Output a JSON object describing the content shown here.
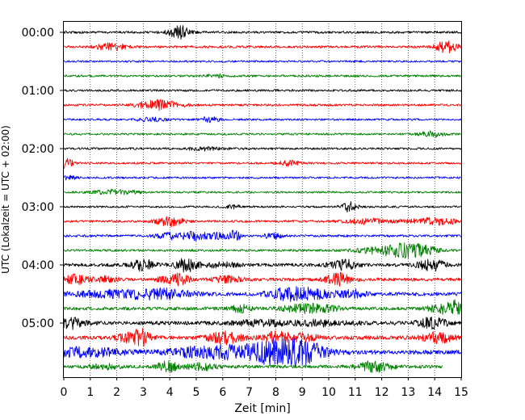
{
  "chart_data": {
    "type": "line",
    "title": "",
    "xlabel": "Zeit  [min]",
    "ylabel": "UTC (Lokalzeit = UTC + 02:00)",
    "xlim": [
      0,
      15
    ],
    "x_ticks": [
      "0",
      "1",
      "2",
      "3",
      "4",
      "5",
      "6",
      "7",
      "8",
      "9",
      "10",
      "11",
      "12",
      "13",
      "14",
      "15"
    ],
    "y_ticks": [
      "00:00",
      "01:00",
      "02:00",
      "03:00",
      "04:00",
      "05:00"
    ],
    "grid": "vertical dotted at each minute",
    "trace_colors": [
      "#000000",
      "#ff0000",
      "#0000ff",
      "#008000"
    ],
    "trace_minutes": 15,
    "traces": [
      {
        "start": "00:00",
        "color": "#000000",
        "base_amplitude": 1.4,
        "events": [
          [
            4.35,
            8,
            0.4
          ]
        ]
      },
      {
        "start": "00:15",
        "color": "#ff0000",
        "base_amplitude": 1.4,
        "events": [
          [
            1.8,
            4,
            0.6
          ],
          [
            14.45,
            7,
            0.4
          ]
        ]
      },
      {
        "start": "00:30",
        "color": "#0000ff",
        "base_amplitude": 1.2,
        "events": []
      },
      {
        "start": "00:45",
        "color": "#008000",
        "base_amplitude": 1.3,
        "events": [
          [
            5.8,
            2,
            0.4
          ]
        ]
      },
      {
        "start": "01:00",
        "color": "#000000",
        "base_amplitude": 1.3,
        "events": []
      },
      {
        "start": "01:15",
        "color": "#ff0000",
        "base_amplitude": 1.3,
        "events": [
          [
            3.6,
            6,
            0.8
          ]
        ]
      },
      {
        "start": "01:30",
        "color": "#0000ff",
        "base_amplitude": 1.2,
        "events": [
          [
            5.5,
            3,
            0.4
          ],
          [
            3.3,
            2,
            0.6
          ]
        ]
      },
      {
        "start": "01:45",
        "color": "#008000",
        "base_amplitude": 1.2,
        "events": [
          [
            13.9,
            3,
            0.5
          ]
        ]
      },
      {
        "start": "02:00",
        "color": "#000000",
        "base_amplitude": 1.3,
        "events": [
          [
            5.3,
            2,
            0.6
          ]
        ]
      },
      {
        "start": "02:15",
        "color": "#ff0000",
        "base_amplitude": 1.2,
        "events": [
          [
            0.05,
            7,
            0.3
          ],
          [
            8.5,
            3,
            0.4
          ]
        ]
      },
      {
        "start": "02:30",
        "color": "#0000ff",
        "base_amplitude": 1.2,
        "events": [
          [
            0.2,
            2,
            0.3
          ]
        ]
      },
      {
        "start": "02:45",
        "color": "#008000",
        "base_amplitude": 1.2,
        "events": [
          [
            2.0,
            3,
            0.8
          ]
        ]
      },
      {
        "start": "03:00",
        "color": "#000000",
        "base_amplitude": 1.2,
        "events": [
          [
            10.75,
            6,
            0.3
          ],
          [
            6.4,
            2,
            0.3
          ]
        ]
      },
      {
        "start": "03:15",
        "color": "#ff0000",
        "base_amplitude": 1.4,
        "events": [
          [
            4.0,
            6,
            0.5
          ],
          [
            14.0,
            4,
            1.0
          ],
          [
            11.5,
            3,
            0.8
          ]
        ]
      },
      {
        "start": "03:30",
        "color": "#0000ff",
        "base_amplitude": 1.4,
        "events": [
          [
            5.0,
            5,
            0.5
          ],
          [
            6.4,
            6,
            0.3
          ],
          [
            3.95,
            4,
            0.5
          ],
          [
            7.9,
            4,
            0.3
          ],
          [
            5.8,
            3,
            0.3
          ]
        ]
      },
      {
        "start": "03:45",
        "color": "#008000",
        "base_amplitude": 1.4,
        "events": [
          [
            12.5,
            6,
            1.2
          ],
          [
            13.3,
            4,
            0.8
          ]
        ]
      },
      {
        "start": "04:00",
        "color": "#000000",
        "base_amplitude": 2.0,
        "events": [
          [
            3.0,
            7,
            0.4
          ],
          [
            4.65,
            8,
            0.4
          ],
          [
            10.55,
            6,
            0.5
          ],
          [
            13.85,
            7,
            0.5
          ],
          [
            6.0,
            3,
            0.6
          ]
        ]
      },
      {
        "start": "04:15",
        "color": "#ff0000",
        "base_amplitude": 2.0,
        "events": [
          [
            0.45,
            6,
            0.4
          ],
          [
            4.2,
            7,
            0.5
          ],
          [
            10.4,
            7,
            0.5
          ],
          [
            6.2,
            4,
            0.5
          ],
          [
            1.5,
            3,
            0.5
          ]
        ]
      },
      {
        "start": "04:30",
        "color": "#0000ff",
        "base_amplitude": 2.2,
        "events": [
          [
            2.2,
            4,
            1.8
          ],
          [
            3.8,
            4,
            1.0
          ],
          [
            8.5,
            6,
            0.8
          ],
          [
            9.5,
            4,
            1.0
          ],
          [
            11.0,
            4,
            0.4
          ]
        ]
      },
      {
        "start": "04:45",
        "color": "#008000",
        "base_amplitude": 2.0,
        "events": [
          [
            6.7,
            4,
            0.4
          ],
          [
            9.3,
            5,
            1.0
          ],
          [
            14.75,
            7,
            0.4
          ],
          [
            14.3,
            4,
            0.6
          ]
        ]
      },
      {
        "start": "05:00",
        "color": "#000000",
        "base_amplitude": 2.4,
        "events": [
          [
            0.3,
            6,
            0.5
          ],
          [
            9.8,
            3,
            1.0
          ],
          [
            13.9,
            6,
            0.5
          ],
          [
            7.5,
            3,
            1.0
          ]
        ]
      },
      {
        "start": "05:15",
        "color": "#ff0000",
        "base_amplitude": 2.4,
        "events": [
          [
            2.95,
            9,
            0.3
          ],
          [
            2.45,
            5,
            0.4
          ],
          [
            6.1,
            7,
            0.6
          ],
          [
            8.0,
            6,
            0.5
          ],
          [
            14.1,
            6,
            0.6
          ],
          [
            9.0,
            4,
            0.6
          ]
        ]
      },
      {
        "start": "05:30",
        "color": "#0000ff",
        "base_amplitude": 2.6,
        "events": [
          [
            0.8,
            5,
            1.4
          ],
          [
            4.9,
            5,
            1.0
          ],
          [
            6.0,
            5,
            0.6
          ],
          [
            7.7,
            7,
            1.0
          ],
          [
            8.2,
            8,
            1.5
          ],
          [
            9.1,
            9,
            0.6
          ]
        ]
      },
      {
        "start": "05:45",
        "color": "#008000",
        "base_amplitude": 2.0,
        "events": [
          [
            3.9,
            6,
            0.4
          ],
          [
            1.5,
            3,
            0.5
          ],
          [
            5.2,
            4,
            0.5
          ],
          [
            11.7,
            6,
            0.6
          ]
        ]
      }
    ]
  }
}
